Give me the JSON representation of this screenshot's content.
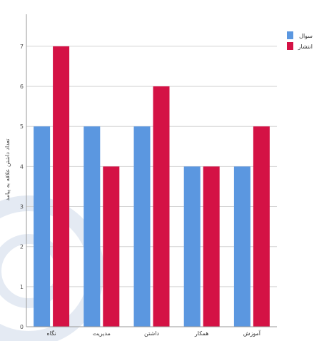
{
  "chart_data": {
    "type": "bar",
    "title": "",
    "xlabel": "",
    "ylabel": "تعداد داشتن علاقه به پیامد",
    "categories": [
      "نگاه",
      "مدیریت",
      "داشتن",
      "همکار",
      "آموزش"
    ],
    "series": [
      {
        "name": "سوال",
        "color": "#5b97e0",
        "values": [
          5,
          5,
          5,
          4,
          4
        ]
      },
      {
        "name": "انتشار",
        "color": "#d41245",
        "values": [
          7,
          4,
          6,
          4,
          5
        ]
      }
    ],
    "y_ticks": [
      "0",
      "1",
      "2",
      "3",
      "4",
      "5",
      "6",
      "7"
    ],
    "ylim": [
      0,
      7.8
    ],
    "grid": true,
    "legend_position": "top-right"
  }
}
